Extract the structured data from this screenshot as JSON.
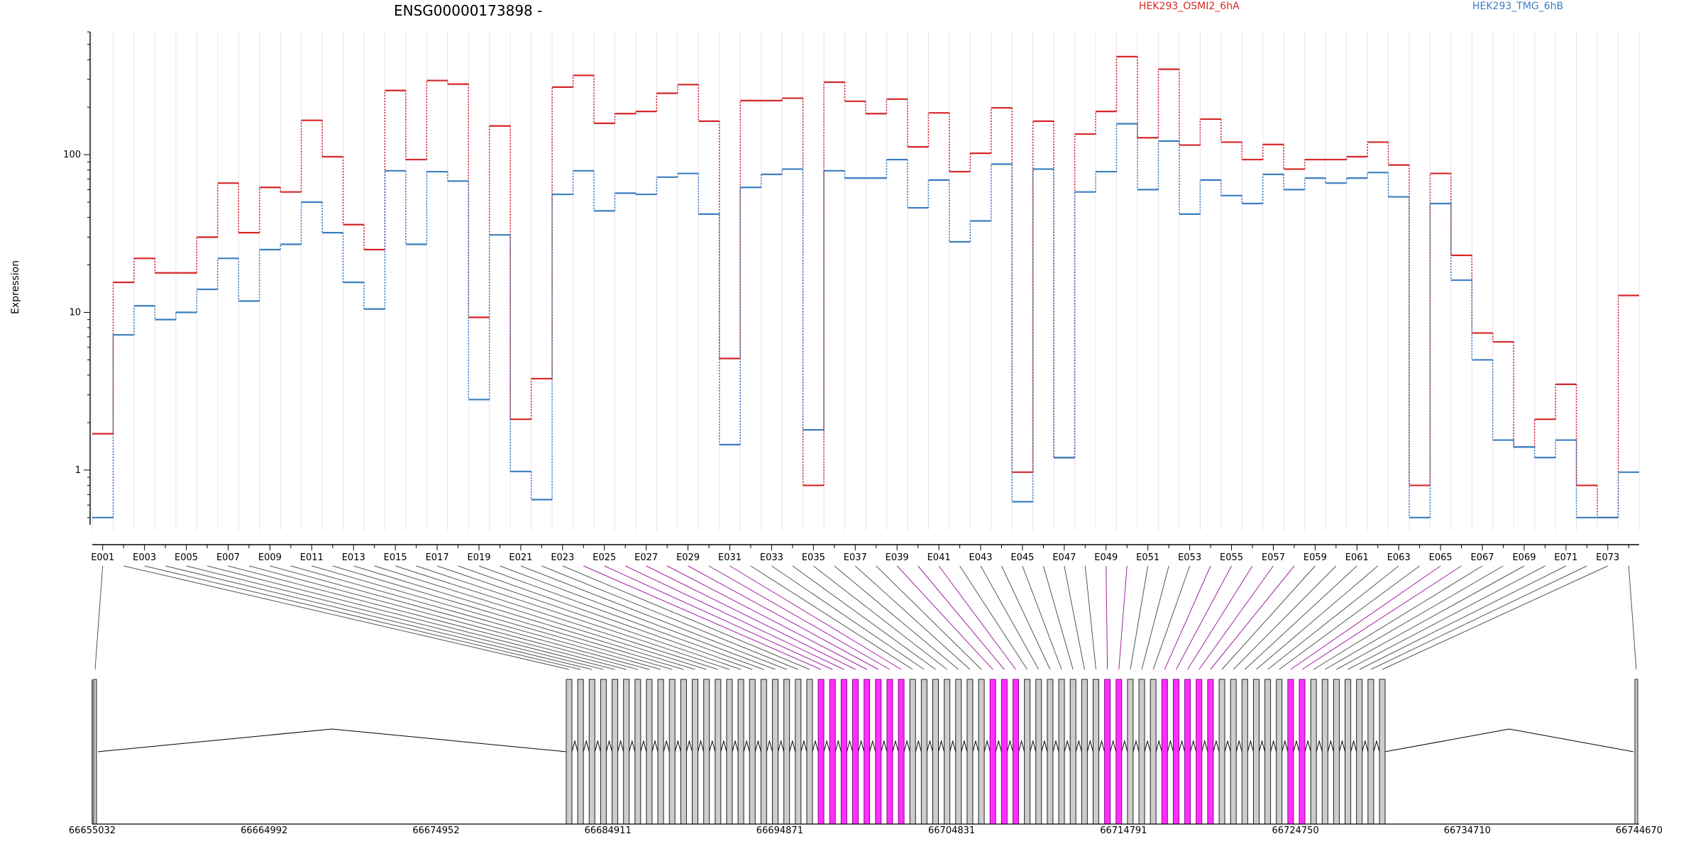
{
  "chart_data": {
    "type": "line",
    "title": "ENSG00000173898 -",
    "ylabel": "Expression",
    "yscale": "log",
    "ylim": [
      0.45,
      600
    ],
    "yticks": [
      "1",
      "10",
      "100"
    ],
    "exons": [
      "E001",
      "E002",
      "E003",
      "E004",
      "E005",
      "E006",
      "E007",
      "E008",
      "E009",
      "E010",
      "E011",
      "E012",
      "E013",
      "E014",
      "E015",
      "E016",
      "E017",
      "E018",
      "E019",
      "E020",
      "E021",
      "E022",
      "E023",
      "E024",
      "E025",
      "E026",
      "E027",
      "E028",
      "E029",
      "E030",
      "E031",
      "E032",
      "E033",
      "E034",
      "E035",
      "E036",
      "E037",
      "E038",
      "E039",
      "E040",
      "E041",
      "E042",
      "E043",
      "E044",
      "E045",
      "E046",
      "E047",
      "E048",
      "E049",
      "E050",
      "E051",
      "E052",
      "E053",
      "E054",
      "E055",
      "E056",
      "E057",
      "E058",
      "E059",
      "E060",
      "E061",
      "E062",
      "E063",
      "E064",
      "E065",
      "E066",
      "E067",
      "E068",
      "E069",
      "E070",
      "E071",
      "E072",
      "E073",
      "E074"
    ],
    "series": [
      {
        "name": "HEK293_OSMI2_6hA",
        "color": "#d62728",
        "values": [
          1.7,
          15.5,
          22,
          17.8,
          17.8,
          30,
          66,
          32,
          62,
          58,
          165,
          97,
          36,
          25,
          255,
          93,
          295,
          280,
          9.3,
          152,
          2.1,
          3.8,
          268,
          318,
          158,
          182,
          188,
          245,
          278,
          163,
          5.1,
          220,
          220,
          228,
          0.8,
          288,
          218,
          182,
          225,
          112,
          184,
          78,
          102,
          198,
          0.97,
          163,
          1.2,
          135,
          188,
          418,
          128,
          348,
          115,
          168,
          120,
          93,
          116,
          81,
          93,
          93,
          97,
          120,
          86,
          0.8,
          76,
          23,
          7.4,
          6.5,
          1.4,
          2.1,
          3.5,
          0.8,
          0.5,
          12.8
        ]
      },
      {
        "name": "HEK293_TMG_6hB",
        "color": "#3a7fc1",
        "values": [
          0.5,
          7.2,
          11,
          9,
          10,
          14,
          22,
          11.8,
          25,
          27,
          50,
          32,
          15.5,
          10.5,
          79,
          27,
          78,
          68,
          2.8,
          31,
          0.98,
          0.65,
          56,
          79,
          44,
          57,
          56,
          72,
          76,
          42,
          1.45,
          62,
          75,
          81,
          1.8,
          79,
          71,
          71,
          93,
          46,
          69,
          28,
          38,
          87,
          0.63,
          81,
          1.2,
          58,
          78,
          157,
          60,
          122,
          42,
          69,
          55,
          49,
          75,
          60,
          71,
          66,
          71,
          77,
          54,
          0.5,
          49,
          16,
          5,
          1.55,
          1.4,
          1.2,
          1.55,
          0.5,
          0.5,
          0.97
        ]
      }
    ],
    "xticks": [
      "E001",
      "E003",
      "E005",
      "E007",
      "E009",
      "E011",
      "E013",
      "E015",
      "E017",
      "E019",
      "E021",
      "E023",
      "E025",
      "E027",
      "E029",
      "E031",
      "E033",
      "E035",
      "E037",
      "E039",
      "E041",
      "E043",
      "E045",
      "E047",
      "E049",
      "E051",
      "E053",
      "E055",
      "E057",
      "E059",
      "E061",
      "E063",
      "E065",
      "E067",
      "E069",
      "E071",
      "E073"
    ],
    "highlighted_exons": [
      "E024",
      "E025",
      "E026",
      "E027",
      "E028",
      "E029",
      "E030",
      "E031",
      "E039",
      "E040",
      "E041",
      "E049",
      "E050",
      "E054",
      "E055",
      "E056",
      "E057",
      "E058",
      "E065",
      "E066"
    ],
    "genomic_coordinates": [
      "66655032",
      "66664992",
      "66674952",
      "66684911",
      "66694871",
      "66704831",
      "66714791",
      "66724750",
      "66734710",
      "66744670"
    ],
    "genomic_range": [
      66655032,
      66744670
    ]
  }
}
